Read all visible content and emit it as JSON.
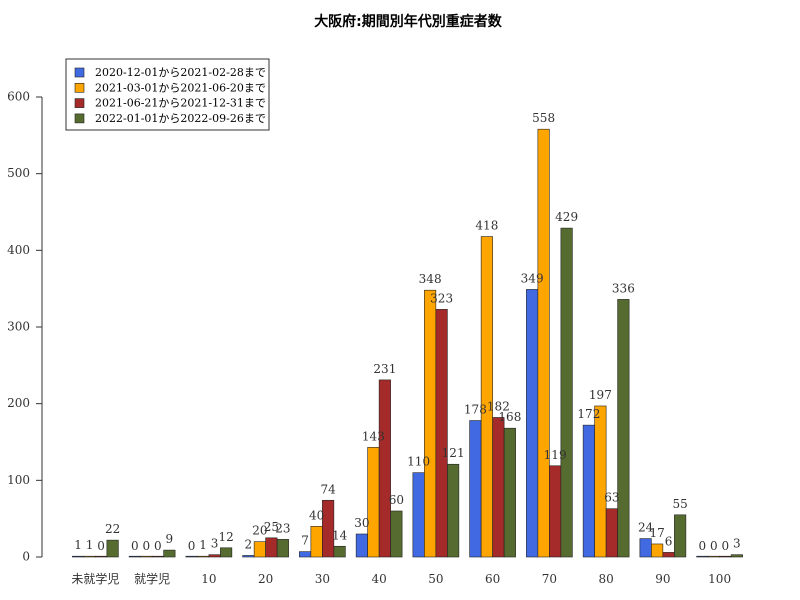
{
  "chart_data": {
    "type": "bar",
    "title": "大阪府:期間別年代別重症者数",
    "categories": [
      "未就学児",
      "就学児",
      "10",
      "20",
      "30",
      "40",
      "50",
      "60",
      "70",
      "80",
      "90",
      "100"
    ],
    "series": [
      {
        "name": "2020-12-01から2021-02-28まで",
        "color": "#4169e1",
        "values": [
          1,
          0,
          0,
          2,
          7,
          30,
          110,
          178,
          349,
          172,
          24,
          0
        ]
      },
      {
        "name": "2021-03-01から2021-06-20まで",
        "color": "#ffa500",
        "values": [
          1,
          0,
          1,
          20,
          40,
          143,
          348,
          418,
          558,
          197,
          17,
          0
        ]
      },
      {
        "name": "2021-06-21から2021-12-31まで",
        "color": "#a52a2a",
        "values": [
          0,
          0,
          3,
          25,
          74,
          231,
          323,
          182,
          119,
          63,
          6,
          0
        ]
      },
      {
        "name": "2022-01-01から2022-09-26まで",
        "color": "#556b2f",
        "values": [
          22,
          9,
          12,
          23,
          14,
          60,
          121,
          168,
          429,
          336,
          55,
          3
        ]
      }
    ],
    "yticks": [
      0,
      100,
      200,
      300,
      400,
      500,
      600
    ],
    "ylim": [
      0,
      600
    ],
    "grid": false,
    "legend_position": "top-left"
  }
}
